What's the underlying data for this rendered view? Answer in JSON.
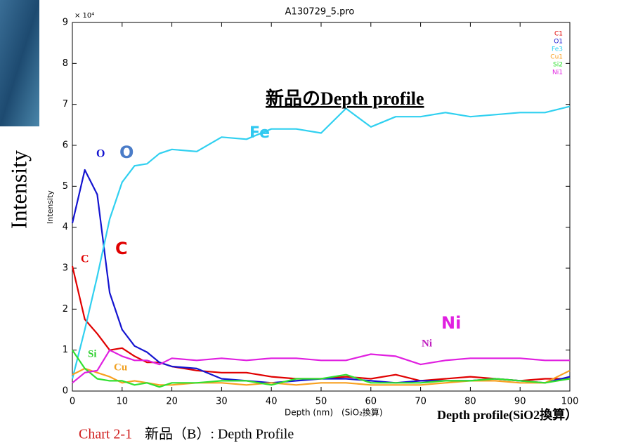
{
  "chart_data": {
    "type": "line",
    "title": "A130729_5.pro",
    "y_multiplier": "× 10⁴",
    "ylabel": "Intensity",
    "xlabel": "Depth (nm)　(SiO₂換算)",
    "x": [
      0,
      2.5,
      5,
      7.5,
      10,
      12.5,
      15,
      17.5,
      20,
      25,
      30,
      35,
      40,
      45,
      50,
      55,
      60,
      65,
      70,
      75,
      80,
      85,
      90,
      95,
      100
    ],
    "xlim": [
      0,
      100
    ],
    "xticks": [
      0,
      10,
      20,
      30,
      40,
      50,
      60,
      70,
      80,
      90,
      100
    ],
    "ylim": [
      0,
      9
    ],
    "yticks": [
      0,
      1,
      2,
      3,
      4,
      5,
      6,
      7,
      8,
      9
    ],
    "legend_position": "upper right",
    "series": [
      {
        "name": "C1",
        "color": "#e00000",
        "values": [
          3.05,
          1.75,
          1.4,
          1.0,
          1.05,
          0.85,
          0.7,
          0.7,
          0.6,
          0.5,
          0.45,
          0.45,
          0.35,
          0.3,
          0.3,
          0.35,
          0.3,
          0.4,
          0.25,
          0.3,
          0.35,
          0.3,
          0.25,
          0.3,
          0.3
        ]
      },
      {
        "name": "O1",
        "color": "#1414d0",
        "values": [
          4.1,
          5.4,
          4.8,
          2.4,
          1.5,
          1.1,
          0.95,
          0.7,
          0.6,
          0.55,
          0.3,
          0.25,
          0.2,
          0.25,
          0.3,
          0.3,
          0.25,
          0.2,
          0.25,
          0.25,
          0.25,
          0.3,
          0.25,
          0.2,
          0.35
        ]
      },
      {
        "name": "Fe3",
        "color": "#30d0f0",
        "values": [
          0.3,
          1.5,
          2.8,
          4.2,
          5.1,
          5.5,
          5.55,
          5.8,
          5.9,
          5.85,
          6.2,
          6.15,
          6.4,
          6.4,
          6.3,
          6.9,
          6.45,
          6.7,
          6.7,
          6.8,
          6.7,
          6.75,
          6.8,
          6.8,
          6.95
        ]
      },
      {
        "name": "Cu1",
        "color": "#f8a020",
        "values": [
          0.4,
          0.55,
          0.45,
          0.35,
          0.2,
          0.25,
          0.2,
          0.15,
          0.15,
          0.2,
          0.2,
          0.15,
          0.2,
          0.15,
          0.2,
          0.2,
          0.15,
          0.15,
          0.15,
          0.2,
          0.25,
          0.25,
          0.2,
          0.2,
          0.5
        ]
      },
      {
        "name": "Si2",
        "color": "#30e030",
        "values": [
          1.0,
          0.55,
          0.3,
          0.25,
          0.25,
          0.15,
          0.2,
          0.1,
          0.2,
          0.2,
          0.25,
          0.25,
          0.15,
          0.3,
          0.3,
          0.4,
          0.2,
          0.2,
          0.2,
          0.25,
          0.25,
          0.3,
          0.25,
          0.2,
          0.3
        ]
      },
      {
        "name": "Ni1",
        "color": "#e020e0",
        "values": [
          0.2,
          0.45,
          0.5,
          1.0,
          0.85,
          0.75,
          0.75,
          0.65,
          0.8,
          0.75,
          0.8,
          0.75,
          0.8,
          0.8,
          0.75,
          0.75,
          0.9,
          0.85,
          0.65,
          0.75,
          0.8,
          0.8,
          0.8,
          0.75,
          0.75
        ]
      }
    ],
    "annotations": [
      "新品のDepth profile",
      "Fe",
      "O",
      "O",
      "C",
      "C",
      "Ni",
      "Ni",
      "Si",
      "Cu",
      "Intensity",
      "Depth profile(SiO2換算）"
    ],
    "caption": [
      "Chart 2-1",
      "新品（B）: Depth Profile"
    ]
  }
}
